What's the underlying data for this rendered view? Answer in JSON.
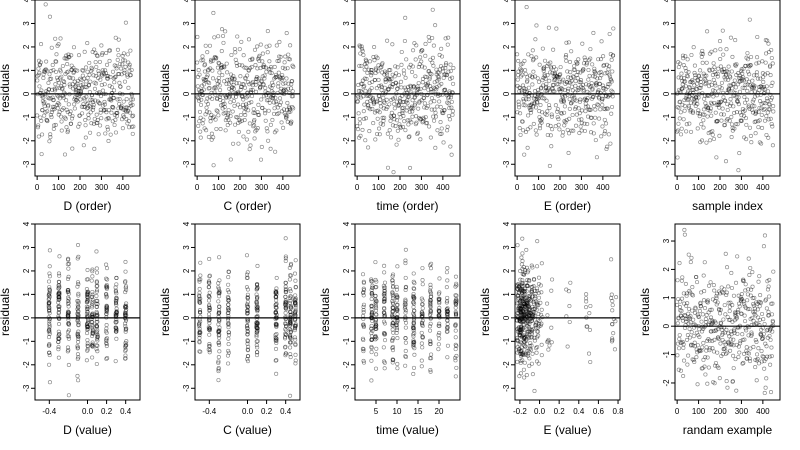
{
  "chart_data": [
    {
      "type": "scatter",
      "xlabel": "D (order)",
      "ylabel": "residuals",
      "xlim": [
        -10,
        480
      ],
      "ylim": [
        -3.5,
        4
      ],
      "xticks": [
        0,
        100,
        200,
        300,
        400
      ],
      "yticks": [
        -3,
        -2,
        -1,
        0,
        1,
        2,
        3,
        4
      ],
      "hline": 0,
      "n_points": 450,
      "x_pattern": "index",
      "seed": 11
    },
    {
      "type": "scatter",
      "xlabel": "C (order)",
      "ylabel": "residuals",
      "xlim": [
        -10,
        480
      ],
      "ylim": [
        -3.5,
        4
      ],
      "xticks": [
        0,
        100,
        200,
        300,
        400
      ],
      "yticks": [
        -3,
        -2,
        -1,
        0,
        1,
        2,
        3,
        4
      ],
      "hline": 0,
      "n_points": 450,
      "x_pattern": "index",
      "seed": 22
    },
    {
      "type": "scatter",
      "xlabel": "time (order)",
      "ylabel": "residuals",
      "xlim": [
        -10,
        480
      ],
      "ylim": [
        -3.5,
        4
      ],
      "xticks": [
        0,
        100,
        200,
        300,
        400
      ],
      "yticks": [
        -3,
        -2,
        -1,
        0,
        1,
        2,
        3,
        4
      ],
      "hline": 0,
      "n_points": 450,
      "x_pattern": "index",
      "seed": 33
    },
    {
      "type": "scatter",
      "xlabel": "E (order)",
      "ylabel": "residuals",
      "xlim": [
        -10,
        480
      ],
      "ylim": [
        -3.5,
        4
      ],
      "xticks": [
        0,
        100,
        200,
        300,
        400
      ],
      "yticks": [
        -3,
        -2,
        -1,
        0,
        1,
        2,
        3,
        4
      ],
      "hline": 0,
      "n_points": 450,
      "x_pattern": "index",
      "seed": 44
    },
    {
      "type": "scatter",
      "xlabel": "sample index",
      "ylabel": "residuals",
      "xlim": [
        -10,
        480
      ],
      "ylim": [
        -3.5,
        4
      ],
      "xticks": [
        0,
        100,
        200,
        300,
        400
      ],
      "yticks": [
        -3,
        -2,
        -1,
        0,
        1,
        2,
        3,
        4
      ],
      "hline": 0,
      "n_points": 450,
      "x_pattern": "index",
      "seed": 55
    },
    {
      "type": "scatter",
      "xlabel": "D (value)",
      "ylabel": "residuals",
      "xlim": [
        -0.55,
        0.55
      ],
      "ylim": [
        -3.5,
        4
      ],
      "xticks": [
        -0.4,
        0.0,
        0.2,
        0.4
      ],
      "xticklabels": [
        "-0.4",
        "0.0",
        "0.2",
        "0.4"
      ],
      "yticks": [
        -3,
        -2,
        -1,
        0,
        1,
        2,
        3,
        4
      ],
      "hline": 0,
      "n_points": 450,
      "x_pattern": "discrete",
      "x_levels": [
        -0.4,
        -0.3,
        -0.2,
        -0.1,
        0.0,
        0.05,
        0.1,
        0.2,
        0.3,
        0.4
      ],
      "seed": 66
    },
    {
      "type": "scatter",
      "xlabel": "C (value)",
      "ylabel": "residuals",
      "xlim": [
        -0.55,
        0.55
      ],
      "ylim": [
        -3.5,
        4
      ],
      "xticks": [
        -0.4,
        0.0,
        0.2,
        0.4
      ],
      "xticklabels": [
        "-0.4",
        "0.0",
        "0.2",
        "0.4"
      ],
      "yticks": [
        -3,
        -2,
        -1,
        0,
        1,
        2,
        3,
        4
      ],
      "hline": 0,
      "n_points": 450,
      "x_pattern": "discrete",
      "x_levels": [
        -0.5,
        -0.4,
        -0.3,
        -0.2,
        0.0,
        0.1,
        0.3,
        0.4,
        0.45,
        0.5
      ],
      "seed": 77
    },
    {
      "type": "scatter",
      "xlabel": "time (value)",
      "ylabel": "residuals",
      "xlim": [
        0,
        25
      ],
      "ylim": [
        -3.5,
        4
      ],
      "xticks": [
        5,
        10,
        15,
        20
      ],
      "xticklabels": [
        "5",
        "10",
        "15",
        "20"
      ],
      "yticks": [
        -3,
        -2,
        -1,
        0,
        1,
        2,
        3,
        4
      ],
      "hline": 0,
      "n_points": 450,
      "x_pattern": "discrete",
      "x_levels": [
        2,
        4,
        5,
        7,
        9,
        10,
        12,
        14,
        16,
        18,
        20,
        22,
        24
      ],
      "seed": 88
    },
    {
      "type": "scatter",
      "xlabel": "E (value)",
      "ylabel": "residuals",
      "xlim": [
        -0.25,
        0.82
      ],
      "ylim": [
        -3.5,
        4
      ],
      "xticks": [
        -0.2,
        0.0,
        0.2,
        0.4,
        0.6,
        0.8
      ],
      "xticklabels": [
        "-0.2",
        "0.0",
        "0.2",
        "0.4",
        "0.6",
        "0.8"
      ],
      "yticks": [
        -3,
        -2,
        -1,
        0,
        1,
        2,
        3,
        4
      ],
      "hline": 0,
      "n_points": 450,
      "x_pattern": "cluster",
      "x_levels": [
        -0.2,
        -0.15,
        -0.1,
        -0.05,
        0.0,
        0.1,
        0.3,
        0.5,
        0.75
      ],
      "x_weights": [
        30,
        25,
        18,
        10,
        6,
        3,
        2,
        2,
        4
      ],
      "seed": 99
    },
    {
      "type": "scatter",
      "xlabel": "randam example",
      "ylabel": "residuals",
      "xlim": [
        -10,
        480
      ],
      "ylim": [
        -2.6,
        3.6
      ],
      "xticks": [
        0,
        100,
        200,
        300,
        400
      ],
      "yticks": [
        -2,
        -1,
        0,
        1,
        2,
        3
      ],
      "hline": 0,
      "n_points": 450,
      "x_pattern": "index",
      "seed": 111
    }
  ]
}
